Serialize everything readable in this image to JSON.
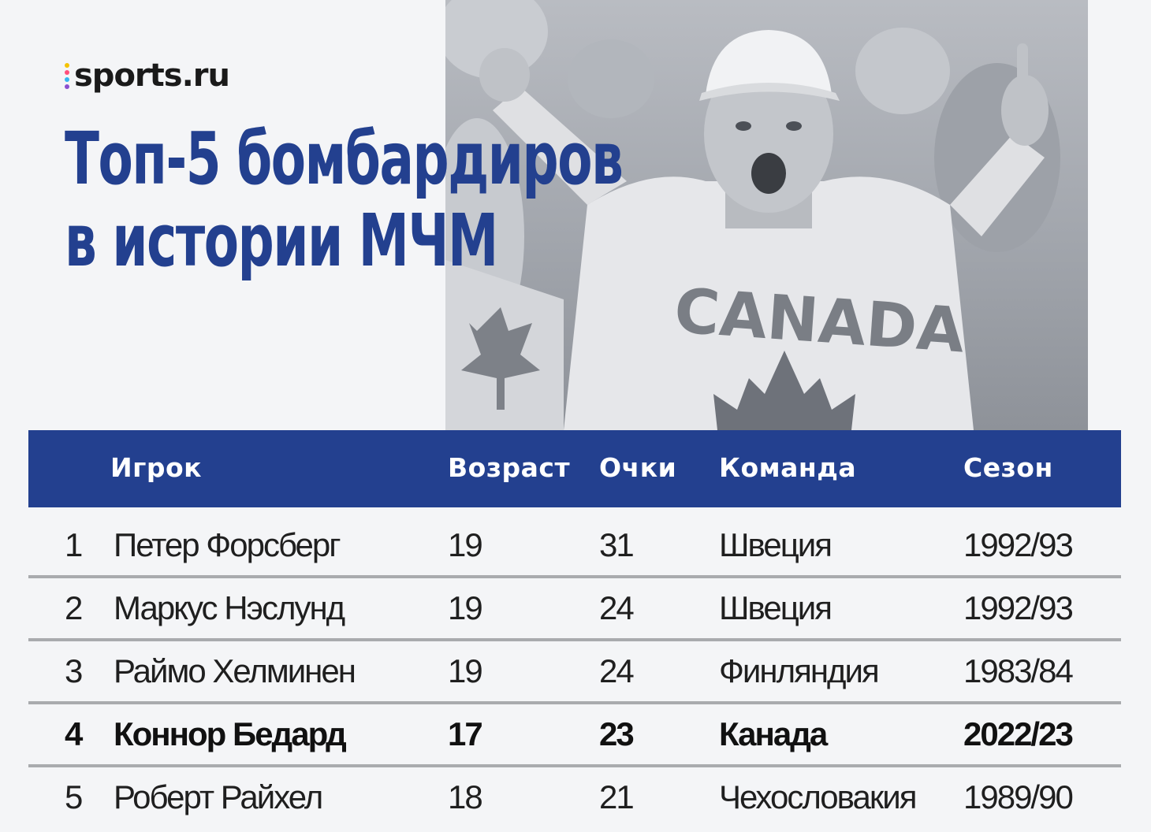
{
  "logo": {
    "text": "sports.ru",
    "dot_colors": [
      "#f4c300",
      "#ff4f7b",
      "#35b6f0",
      "#8a4fd0"
    ]
  },
  "title": {
    "line1": "Топ-5 бомбардиров",
    "line2": "в истории МЧМ"
  },
  "photo": {
    "jersey_text": "CANADA"
  },
  "table": {
    "headers": {
      "player": "Игрок",
      "age": "Возраст",
      "points": "Очки",
      "team": "Команда",
      "season": "Сезон"
    },
    "rows": [
      {
        "rank": "1",
        "player": "Петер Форсберг",
        "age": "19",
        "points": "31",
        "team": "Швеция",
        "season": "1992/93",
        "highlight": false
      },
      {
        "rank": "2",
        "player": "Маркус Нэслунд",
        "age": "19",
        "points": "24",
        "team": "Швеция",
        "season": "1992/93",
        "highlight": false
      },
      {
        "rank": "3",
        "player": "Раймо Хелминен",
        "age": "19",
        "points": "24",
        "team": "Финляндия",
        "season": "1983/84",
        "highlight": false
      },
      {
        "rank": "4",
        "player": "Коннор Бедард",
        "age": "17",
        "points": "23",
        "team": "Канада",
        "season": "2022/23",
        "highlight": true
      },
      {
        "rank": "5",
        "player": "Роберт Райхел",
        "age": "18",
        "points": "21",
        "team": "Чехословакия",
        "season": "1989/90",
        "highlight": false
      }
    ]
  },
  "colors": {
    "accent": "#23408f",
    "background": "#f4f5f7",
    "divider": "#a9abae"
  }
}
